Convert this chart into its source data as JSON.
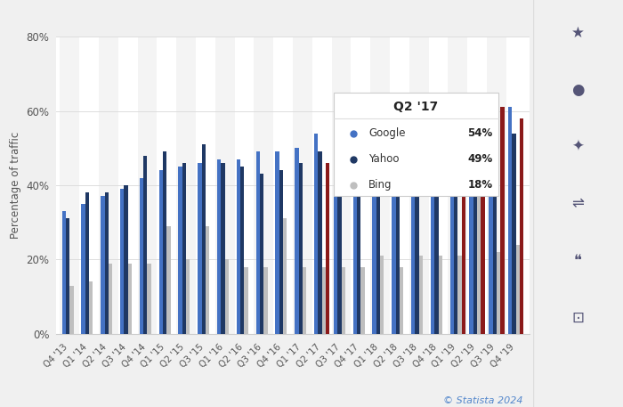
{
  "quarters": [
    "Q4 '13",
    "Q1 '14",
    "Q2 '14",
    "Q3 '14",
    "Q4 '14",
    "Q1 '15",
    "Q2 '15",
    "Q3 '15",
    "Q1 '16",
    "Q2 '16",
    "Q3 '16",
    "Q4 '16",
    "Q1 '17",
    "Q2 '17",
    "Q3 '17",
    "Q4 '17",
    "Q1 '18",
    "Q2 '18",
    "Q3 '18",
    "Q4 '18",
    "Q1 '19",
    "Q2 '19",
    "Q3 '19",
    "Q4 '19"
  ],
  "google": [
    33,
    35,
    37,
    39,
    42,
    44,
    45,
    46,
    47,
    47,
    49,
    49,
    50,
    54,
    50,
    48,
    49,
    50,
    51,
    50,
    52,
    55,
    62,
    61
  ],
  "yahoo": [
    31,
    38,
    38,
    40,
    48,
    49,
    46,
    51,
    46,
    45,
    43,
    44,
    46,
    49,
    46,
    45,
    47,
    48,
    51,
    51,
    49,
    52,
    53,
    54
  ],
  "bing": [
    13,
    14,
    19,
    19,
    19,
    29,
    20,
    29,
    20,
    18,
    18,
    31,
    18,
    18,
    18,
    18,
    21,
    18,
    21,
    21,
    21,
    50,
    22,
    24
  ],
  "duckduckgo": [
    0,
    0,
    0,
    0,
    0,
    0,
    0,
    0,
    0,
    0,
    0,
    0,
    0,
    46,
    0,
    0,
    0,
    0,
    0,
    0,
    59,
    61,
    61,
    58
  ],
  "google_color": "#4472C4",
  "yahoo_color": "#1F3864",
  "bing_color": "#BFBFBF",
  "duckduckgo_color": "#8B1A1A",
  "ylabel": "Percentage of traffic",
  "fig_bg_color": "#F0F0F0",
  "plot_bg_color": "#FFFFFF",
  "chart_bg_color": "#EFEFEF",
  "tooltip_quarter": "Q2 '17",
  "tooltip_google": "54%",
  "tooltip_yahoo": "49%",
  "tooltip_bing": "18%",
  "ylim": [
    0,
    80
  ],
  "yticks": [
    0,
    20,
    40,
    60,
    80
  ],
  "statista_text": "© Statista 2024"
}
